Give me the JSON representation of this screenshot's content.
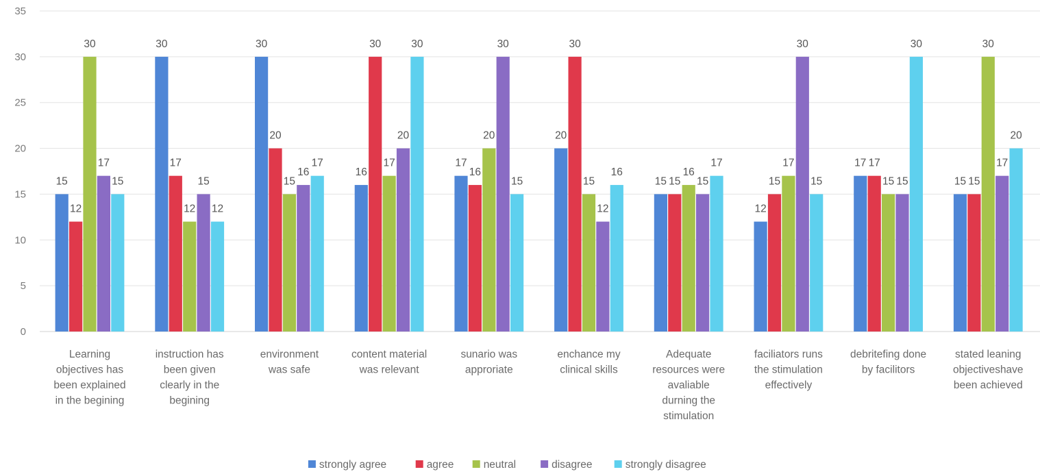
{
  "chart_data": {
    "type": "bar",
    "categories": [
      "Learning objectives has been explained in the begining",
      "instruction has been given clearly in the begining",
      "environment was safe",
      "content material was relevant",
      "sunario was approriate",
      "enchance my clinical skills",
      "Adequate resources were avaliable durning the stimulation",
      "faciliators runs the stimulation effectively",
      "debritefing done by facilitors",
      "stated leaning objectiveshave been achieved"
    ],
    "category_lines": [
      [
        "Learning",
        "objectives has",
        "been explained",
        "in the begining"
      ],
      [
        "instruction has",
        "been given",
        "clearly in the",
        "begining"
      ],
      [
        "environment",
        "was safe"
      ],
      [
        "content material",
        "was relevant"
      ],
      [
        "sunario was",
        "approriate"
      ],
      [
        "enchance my",
        "clinical skills"
      ],
      [
        "Adequate",
        "resources were",
        "avaliable",
        "durning the",
        "stimulation"
      ],
      [
        "faciliators runs",
        "the stimulation",
        "effectively"
      ],
      [
        "debritefing done",
        "by facilitors"
      ],
      [
        "stated leaning",
        "objectiveshave",
        "been achieved"
      ]
    ],
    "series": [
      {
        "name": "strongly agree",
        "color": "#4f86d6",
        "values": [
          15,
          30,
          30,
          16,
          17,
          20,
          15,
          12,
          17,
          15
        ]
      },
      {
        "name": "agree",
        "color": "#e0394b",
        "values": [
          12,
          17,
          20,
          30,
          16,
          30,
          15,
          15,
          17,
          15
        ]
      },
      {
        "name": "neutral",
        "color": "#a6c34b",
        "values": [
          30,
          12,
          15,
          17,
          20,
          15,
          16,
          17,
          15,
          30
        ]
      },
      {
        "name": "disagree",
        "color": "#8a6cc4",
        "values": [
          17,
          15,
          16,
          20,
          30,
          12,
          15,
          30,
          15,
          17
        ]
      },
      {
        "name": "strongly disagree",
        "color": "#5ed0ee",
        "values": [
          15,
          12,
          17,
          30,
          15,
          16,
          17,
          15,
          30,
          20
        ]
      }
    ],
    "y_ticks": [
      "0",
      "5",
      "10",
      "15",
      "20",
      "25",
      "30",
      "35"
    ],
    "ylim": [
      0,
      35
    ],
    "grid": true,
    "legend_position": "bottom",
    "title": "",
    "xlabel": "",
    "ylabel": ""
  }
}
